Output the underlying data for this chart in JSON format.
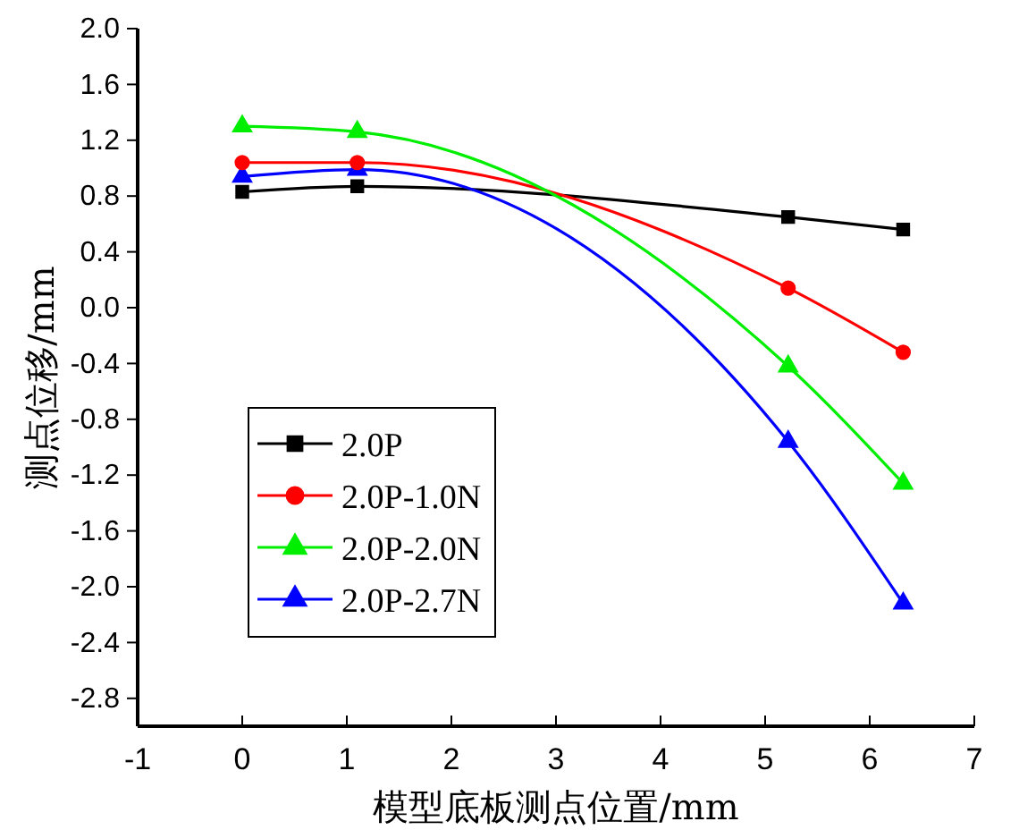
{
  "chart_data": {
    "type": "line",
    "xlabel": "模型底板测点位置/mm",
    "ylabel": "测点位移/mm",
    "x": [
      0,
      1.1,
      5.22,
      6.32
    ],
    "series": [
      {
        "name": "2.0P",
        "color": "#000000",
        "marker": "square",
        "values": [
          0.83,
          0.87,
          0.65,
          0.56
        ]
      },
      {
        "name": "2.0P-1.0N",
        "color": "#ff0000",
        "marker": "circle",
        "values": [
          1.04,
          1.04,
          0.14,
          -0.32
        ]
      },
      {
        "name": "2.0P-2.0N",
        "color": "#00ee00",
        "marker": "triangle",
        "values": [
          1.3,
          1.26,
          -0.42,
          -1.26
        ]
      },
      {
        "name": "2.0P-2.7N",
        "color": "#0000ff",
        "marker": "triangle",
        "values": [
          0.94,
          0.99,
          -0.96,
          -2.12
        ]
      }
    ],
    "xlim": [
      -1,
      7
    ],
    "xticks": [
      -1,
      0,
      1,
      2,
      3,
      4,
      5,
      6,
      7
    ],
    "ylim": [
      -3.0,
      2.0
    ],
    "yticks": [
      {
        "value": -2.8,
        "label": "-2.8"
      },
      {
        "value": -2.4,
        "label": "-2.4"
      },
      {
        "value": -2.0,
        "label": "-2.0"
      },
      {
        "value": -1.6,
        "label": "-1.6"
      },
      {
        "value": -1.2,
        "label": "-1.2"
      },
      {
        "value": -0.8,
        "label": "-0.8"
      },
      {
        "value": -0.4,
        "label": "-0.4"
      },
      {
        "value": 0,
        "label": "0.0"
      },
      {
        "value": 0.4,
        "label": "0.4"
      },
      {
        "value": 0.8,
        "label": "0.8"
      },
      {
        "value": 1.2,
        "label": "1.2"
      },
      {
        "value": 1.6,
        "label": "1.6"
      },
      {
        "value": 2.0,
        "label": "2.0"
      }
    ],
    "grid": false,
    "legend": "bottom left",
    "line_style": "solid"
  }
}
